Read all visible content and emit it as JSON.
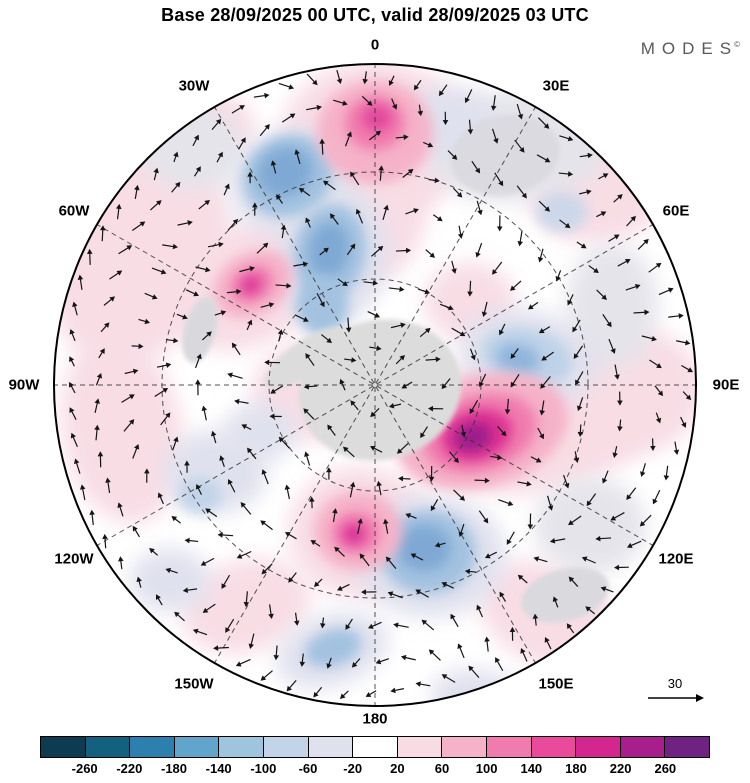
{
  "title": "Base 28/09/2025 00 UTC, valid 28/09/2025 03 UTC",
  "logo": {
    "text": "MODES",
    "mark": "©"
  },
  "map": {
    "lon_labels": [
      {
        "id": "0",
        "label": "0"
      },
      {
        "id": "30E",
        "label": "30E"
      },
      {
        "id": "60E",
        "label": "60E"
      },
      {
        "id": "90E",
        "label": "90E"
      },
      {
        "id": "120E",
        "label": "120E"
      },
      {
        "id": "150E",
        "label": "150E"
      },
      {
        "id": "180",
        "label": "180"
      },
      {
        "id": "150W",
        "label": "150W"
      },
      {
        "id": "120W",
        "label": "120W"
      },
      {
        "id": "90W",
        "label": "90W"
      },
      {
        "id": "60W",
        "label": "60W"
      },
      {
        "id": "30W",
        "label": "30W"
      }
    ],
    "reference_arrow": {
      "label": "30"
    }
  },
  "colorbar": {
    "tick_labels": [
      "-260",
      "-220",
      "-180",
      "-140",
      "-100",
      "-60",
      "-20",
      "20",
      "60",
      "100",
      "140",
      "180",
      "220",
      "260"
    ],
    "colors": [
      "#0d3b4f",
      "#14607f",
      "#2b80ae",
      "#62a5cc",
      "#9ec4de",
      "#c3d4e8",
      "#dfe1ee",
      "#ffffff",
      "#f8dce4",
      "#f5b2c8",
      "#f07bae",
      "#ea4a9c",
      "#d4268f",
      "#a81e8c",
      "#6f2282"
    ]
  },
  "chart_data": {
    "type": "heatmap",
    "title": "Base 28/09/2025 00 UTC, valid 28/09/2025 03 UTC",
    "projection": "south polar stereographic, 0 longitude at top, 180 at bottom",
    "longitude_labels": [
      "0",
      "30E",
      "60E",
      "90E",
      "120E",
      "150E",
      "180",
      "150W",
      "120W",
      "90W",
      "60W",
      "30W"
    ],
    "colorbar_levels": [
      -260,
      -220,
      -180,
      -140,
      -100,
      -60,
      -20,
      20,
      60,
      100,
      140,
      180,
      220,
      260
    ],
    "colorbar_colors": [
      "#0d3b4f",
      "#14607f",
      "#2b80ae",
      "#62a5cc",
      "#9ec4de",
      "#c3d4e8",
      "#dfe1ee",
      "#ffffff",
      "#f8dce4",
      "#f5b2c8",
      "#f07bae",
      "#ea4a9c",
      "#d4268f",
      "#a81e8c",
      "#6f2282"
    ],
    "overlay": "wind anomaly vectors (arrows), reference arrow value 30",
    "vector_reference_value": 30,
    "notable_features": [
      {
        "sign": "positive",
        "location": "near 0 longitude at outer ring (top of disc)",
        "approx_peak": "140 to 180"
      },
      {
        "sign": "positive",
        "location": "mid radius near 40W (upper left)",
        "approx_peak": "180 to 220"
      },
      {
        "sign": "positive",
        "location": "near 90E-120E mid radius (right of center), strongest center",
        "approx_peak": "220 to 260"
      },
      {
        "sign": "positive",
        "location": "inner region near 170W (below center)",
        "approx_peak": "140 to 180"
      },
      {
        "sign": "negative",
        "location": "near 30W upper mid radius",
        "approx_peak": "-100 to -140"
      },
      {
        "sign": "negative",
        "location": "near 10W between center and rim",
        "approx_peak": "-100 to -140"
      },
      {
        "sign": "negative",
        "location": "near 170E below center",
        "approx_peak": "-60 to -100"
      },
      {
        "sign": "negative",
        "location": "near 70E inner region",
        "approx_peak": "-60 to -100"
      },
      {
        "sign": "neutral_gray",
        "location": "Antarctica at center and continental patches (Africa top right, Australia lower right)"
      }
    ]
  },
  "render": {
    "blobs": [
      [
        325,
        80,
        95,
        80,
        0,
        "#f8dde5",
        "lg"
      ],
      [
        322,
        152,
        55,
        72,
        10,
        "#f8dde5",
        "lg"
      ],
      [
        90,
        195,
        85,
        115,
        25,
        "#f8dde5",
        "lg"
      ],
      [
        72,
        370,
        60,
        95,
        -10,
        "#f8dde5",
        "lg"
      ],
      [
        200,
        225,
        82,
        60,
        -30,
        "#f8dde5",
        "lg"
      ],
      [
        492,
        356,
        128,
        76,
        -12,
        "#f8dde5",
        "lg"
      ],
      [
        588,
        330,
        65,
        62,
        0,
        "#f8dde5",
        "lg"
      ],
      [
        310,
        472,
        72,
        66,
        0,
        "#f8dde5",
        "lg"
      ],
      [
        500,
        556,
        76,
        50,
        25,
        "#f8dde5",
        "lg"
      ],
      [
        196,
        546,
        66,
        46,
        -15,
        "#f8dde5",
        "lg"
      ],
      [
        552,
        122,
        76,
        60,
        -15,
        "#f8dde5",
        "lg"
      ],
      [
        162,
        62,
        46,
        32,
        20,
        "#f8dde5",
        "lg"
      ],
      [
        262,
        332,
        60,
        50,
        0,
        "#f8dde5",
        "lg"
      ],
      [
        420,
        242,
        46,
        40,
        0,
        "#f8dde5",
        "lg"
      ],
      [
        470,
        86,
        92,
        56,
        -8,
        "#e4e4ea",
        "lg"
      ],
      [
        562,
        246,
        46,
        62,
        0,
        "#e4e4ea",
        "lg"
      ],
      [
        140,
        86,
        56,
        42,
        15,
        "#e4e4ea",
        "lg"
      ],
      [
        540,
        466,
        56,
        48,
        0,
        "#e4e4ea",
        "lg"
      ],
      [
        240,
        122,
        62,
        52,
        -20,
        "#e0e1ee",
        "lg"
      ],
      [
        282,
        196,
        56,
        72,
        10,
        "#e0e1ee",
        "lg"
      ],
      [
        478,
        297,
        70,
        47,
        12,
        "#e0e1ee",
        "lg"
      ],
      [
        380,
        496,
        76,
        62,
        0,
        "#e0e1ee",
        "lg"
      ],
      [
        282,
        590,
        58,
        36,
        -18,
        "#e0e1ee",
        "lg"
      ],
      [
        165,
        412,
        52,
        42,
        0,
        "#e0e1ee",
        "lg"
      ],
      [
        400,
        62,
        48,
        36,
        0,
        "#e0e1ee",
        "lg"
      ],
      [
        210,
        372,
        36,
        30,
        0,
        "#e0e1ee",
        "lg"
      ],
      [
        430,
        640,
        50,
        30,
        10,
        "#e0e1ee",
        "lg"
      ],
      [
        120,
        520,
        40,
        32,
        0,
        "#e0e1ee",
        "lg"
      ],
      [
        238,
        116,
        46,
        40,
        -25,
        "#a3c2e0",
        "sm"
      ],
      [
        235,
        112,
        28,
        24,
        -25,
        "#7fa9d4",
        "sm"
      ],
      [
        280,
        192,
        36,
        48,
        10,
        "#a3c2e0",
        "sm"
      ],
      [
        279,
        190,
        20,
        28,
        10,
        "#7fa9d4",
        "sm"
      ],
      [
        272,
        246,
        26,
        30,
        0,
        "#a3c2e0",
        "sm"
      ],
      [
        477,
        297,
        46,
        28,
        12,
        "#bdd2e8",
        "sm"
      ],
      [
        468,
        299,
        22,
        15,
        12,
        "#8fb5db",
        "sm"
      ],
      [
        378,
        492,
        48,
        42,
        0,
        "#a3c2e0",
        "sm"
      ],
      [
        374,
        488,
        27,
        23,
        0,
        "#7fa9d4",
        "sm"
      ],
      [
        283,
        588,
        29,
        18,
        -18,
        "#a3c2e0",
        "sm"
      ],
      [
        150,
        435,
        22,
        18,
        0,
        "#c3d4e8",
        "sm"
      ],
      [
        512,
        152,
        26,
        20,
        0,
        "#ccd8ea",
        "sm"
      ],
      [
        325,
        72,
        58,
        52,
        0,
        "#f5b2c8",
        "sm"
      ],
      [
        325,
        63,
        30,
        27,
        0,
        "#f07bae",
        "sm"
      ],
      [
        327,
        58,
        15,
        13,
        0,
        "#e2479b",
        "sm"
      ],
      [
        203,
        224,
        42,
        31,
        -30,
        "#f5b2c8",
        "sm"
      ],
      [
        202,
        224,
        22,
        17,
        -30,
        "#f07bae",
        "sm"
      ],
      [
        201,
        225,
        10,
        8,
        -30,
        "#d92f95",
        "sm"
      ],
      [
        432,
        371,
        88,
        56,
        -16,
        "#f5b2c8",
        "sm"
      ],
      [
        430,
        373,
        58,
        38,
        -16,
        "#f07bae",
        "sm"
      ],
      [
        427,
        375,
        36,
        25,
        -16,
        "#dd3092",
        "sm"
      ],
      [
        423,
        377,
        19,
        14,
        -16,
        "#9c1e8c",
        "sm"
      ],
      [
        308,
        471,
        44,
        40,
        0,
        "#f5b2c8",
        "sm"
      ],
      [
        306,
        473,
        24,
        21,
        0,
        "#f07bae",
        "sm"
      ],
      [
        304,
        474,
        11,
        10,
        0,
        "#d92f95",
        "sm"
      ],
      [
        330,
        330,
        82,
        70,
        -15,
        "#dcdcdc",
        "xs"
      ],
      [
        255,
        298,
        48,
        17,
        -35,
        "#dcdcdc",
        "xs"
      ],
      [
        515,
        535,
        45,
        26,
        -15,
        "#d9d9de",
        "xs"
      ],
      [
        150,
        270,
        16,
        34,
        15,
        "#d9d9dd",
        "xs"
      ],
      [
        455,
        95,
        55,
        40,
        -10,
        "#dadae0",
        "xs"
      ]
    ],
    "vector_rings": [
      [
        0.1,
        8
      ],
      [
        0.21,
        16
      ],
      [
        0.32,
        24
      ],
      [
        0.43,
        33
      ],
      [
        0.54,
        42
      ],
      [
        0.65,
        50
      ],
      [
        0.76,
        58
      ],
      [
        0.87,
        66
      ],
      [
        0.955,
        73
      ]
    ]
  }
}
